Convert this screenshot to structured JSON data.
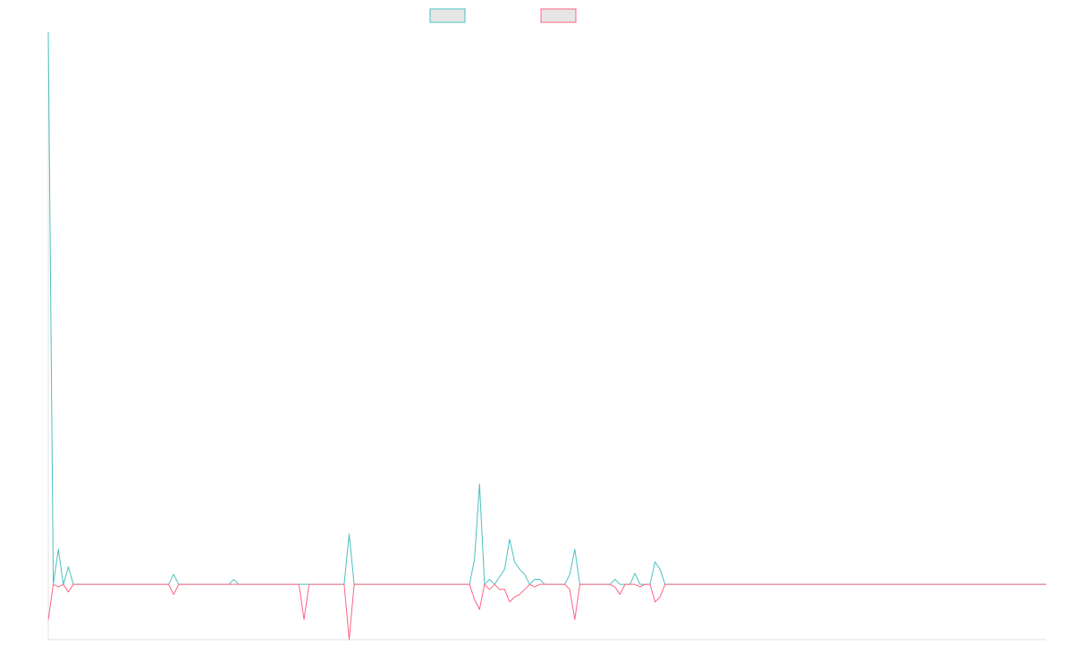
{
  "colors": {
    "series_a": "#4bc0c0",
    "series_b": "#ff6384",
    "swatch_fill": "#e6e6e6",
    "axis": "#e0e0e0"
  },
  "chart_data": {
    "type": "line",
    "legend_position": "top-center",
    "grid": false,
    "x_range": [
      0,
      199
    ],
    "ylim": [
      -11,
      110
    ],
    "series": [
      {
        "label": "",
        "color": "#4bc0c0",
        "values": [
          110,
          0,
          7,
          0,
          3.5,
          0,
          0,
          0,
          0,
          0,
          0,
          0,
          0,
          0,
          0,
          0,
          0,
          0,
          0,
          0,
          0,
          0,
          0,
          0,
          0,
          2,
          0,
          0,
          0,
          0,
          0,
          0,
          0,
          0,
          0,
          0,
          0,
          1,
          0,
          0,
          0,
          0,
          0,
          0,
          0,
          0,
          0,
          0,
          0,
          0,
          0,
          0,
          0,
          0,
          0,
          0,
          0,
          0,
          0,
          0,
          10,
          0,
          0,
          0,
          0,
          0,
          0,
          0,
          0,
          0,
          0,
          0,
          0,
          0,
          0,
          0,
          0,
          0,
          0,
          0,
          0,
          0,
          0,
          0,
          0,
          5,
          20,
          0,
          1,
          0,
          1.5,
          3,
          9,
          4.5,
          3,
          2,
          0,
          1,
          1,
          0,
          0,
          0,
          0,
          0,
          2,
          7,
          0,
          0,
          0,
          0,
          0,
          0,
          0,
          1,
          0,
          0,
          0,
          2.2,
          0,
          0,
          0,
          4.5,
          3,
          0
        ]
      },
      {
        "label": "",
        "color": "#ff6384",
        "values": [
          -7,
          0,
          -0.5,
          0,
          -1.5,
          0,
          0,
          0,
          0,
          0,
          0,
          0,
          0,
          0,
          0,
          0,
          0,
          0,
          0,
          0,
          0,
          0,
          0,
          0,
          0,
          -2,
          0,
          0,
          0,
          0,
          0,
          0,
          0,
          0,
          0,
          0,
          0,
          0,
          0,
          0,
          0,
          0,
          0,
          0,
          0,
          0,
          0,
          0,
          0,
          0,
          0,
          -7,
          0,
          0,
          0,
          0,
          0,
          0,
          0,
          0,
          -11,
          0,
          0,
          0,
          0,
          0,
          0,
          0,
          0,
          0,
          0,
          0,
          0,
          0,
          0,
          0,
          0,
          0,
          0,
          0,
          0,
          0,
          0,
          0,
          0,
          -3,
          -5,
          0,
          -1,
          0,
          -1,
          -1,
          -3.5,
          -2.5,
          -2,
          -1,
          0,
          -0.5,
          0,
          0,
          0,
          0,
          0,
          0,
          -1,
          -7,
          0,
          0,
          0,
          0,
          0,
          0,
          0,
          -0.5,
          -2,
          0,
          0,
          0,
          -0.5,
          0,
          0,
          -3.5,
          -2.5,
          0
        ]
      }
    ]
  }
}
